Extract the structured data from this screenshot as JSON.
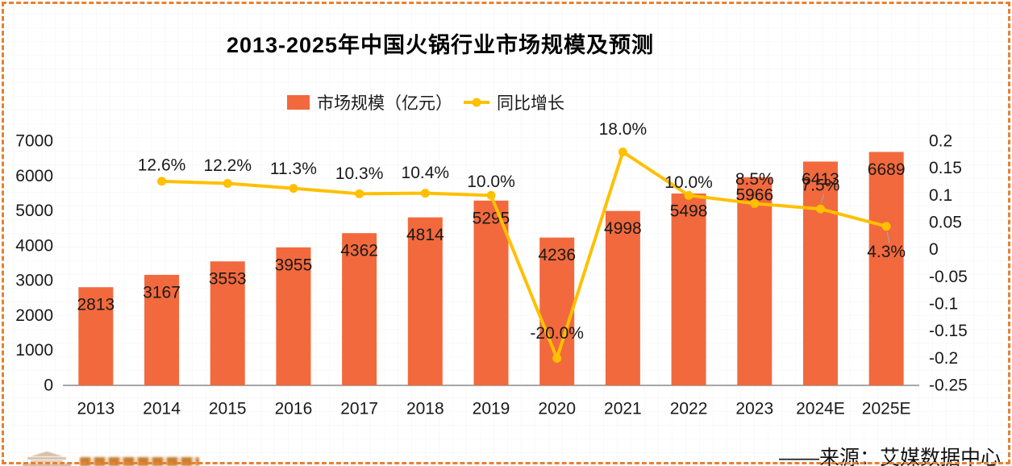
{
  "title": "2013-2025年中国火锅行业市场规模及预测",
  "legend": {
    "bar_label": "市场规模（亿元）",
    "line_label": "同比增长"
  },
  "source": "——来源：艾媒数据中心",
  "colors": {
    "bar": "#f2693d",
    "line": "#ffc000",
    "axis": "#8c8c8c",
    "text": "#1a1a1a",
    "leader": "#a6a6a6",
    "border": "#e8812f"
  },
  "chart_data": {
    "type": "bar",
    "title": "2013-2025年中国火锅行业市场规模及预测",
    "categories": [
      "2013",
      "2014",
      "2015",
      "2016",
      "2017",
      "2018",
      "2019",
      "2020",
      "2021",
      "2022",
      "2023",
      "2024E",
      "2025E"
    ],
    "series": [
      {
        "name": "市场规模（亿元）",
        "type": "bar",
        "axis": "left",
        "values": [
          2813,
          3167,
          3553,
          3955,
          4362,
          4814,
          5295,
          4236,
          4998,
          5498,
          5966,
          6413,
          6689
        ],
        "labels": [
          "2813",
          "3167",
          "3553",
          "3955",
          "4362",
          "4814",
          "5295",
          "4236",
          "4998",
          "5498",
          "5966",
          "6413",
          "6689"
        ]
      },
      {
        "name": "同比增长",
        "type": "line",
        "axis": "right",
        "values": [
          null,
          0.126,
          0.122,
          0.113,
          0.103,
          0.104,
          0.1,
          -0.2,
          0.18,
          0.1,
          0.085,
          0.075,
          0.043
        ],
        "labels": [
          "",
          "12.6%",
          "12.2%",
          "11.3%",
          "10.3%",
          "10.4%",
          "10.0%",
          "-20.0%",
          "18.0%",
          "10.0%",
          "8.5%",
          "7.5%",
          "4.3%"
        ],
        "label_dy": [
          0,
          -20,
          -22,
          -24,
          -25,
          -25,
          -17,
          -31,
          -28,
          -16,
          -30,
          -29,
          32
        ],
        "leader_indices": [
          11,
          12
        ]
      }
    ],
    "left_axis": {
      "min": 0,
      "max": 7000,
      "step": 1000,
      "ticks": [
        "0",
        "1000",
        "2000",
        "3000",
        "4000",
        "5000",
        "6000",
        "7000"
      ]
    },
    "right_axis": {
      "min": -0.25,
      "max": 0.2,
      "step": 0.05,
      "ticks": [
        "-0.25",
        "-0.2",
        "-0.15",
        "-0.1",
        "-0.05",
        "0",
        "0.05",
        "0.1",
        "0.15",
        "0.2"
      ]
    },
    "grid": false,
    "legend_position": "top-center",
    "xlabel": "",
    "ylabel_left": "市场规模（亿元）",
    "ylabel_right": "同比增长"
  }
}
